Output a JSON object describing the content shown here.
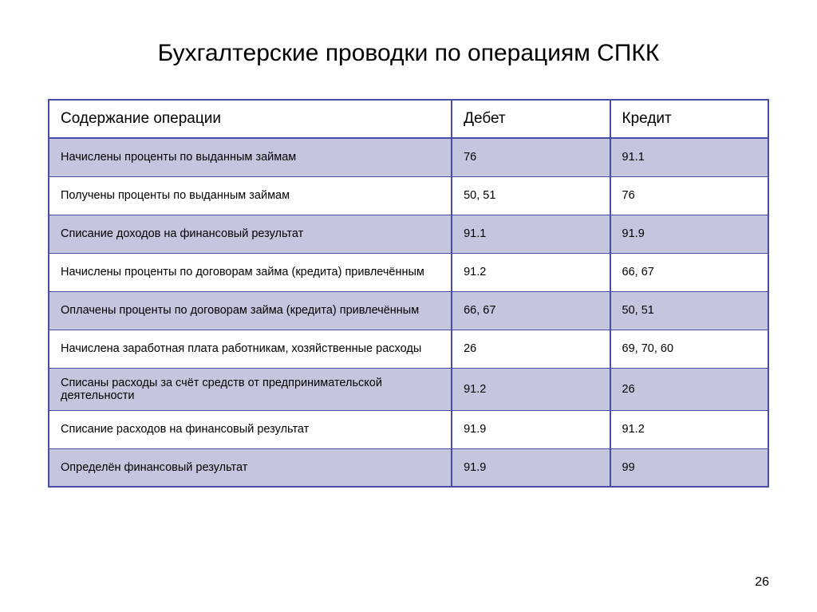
{
  "title": "Бухгалтерские проводки по операциям СПКК",
  "page_number": "26",
  "table": {
    "border_color": "#4a4da5",
    "row_bg_even": "#c4c6de",
    "row_bg_odd": "#ffffff",
    "title_fontsize": 30,
    "header_fontsize": 19,
    "body_fontsize": 14.5,
    "columns": [
      {
        "key": "operation",
        "label": "Содержание операции",
        "width_pct": 56
      },
      {
        "key": "debit",
        "label": "Дебет",
        "width_pct": 22
      },
      {
        "key": "credit",
        "label": "Кредит",
        "width_pct": 22
      }
    ],
    "rows": [
      {
        "operation": "Начислены проценты по выданным займам",
        "debit": "76",
        "credit": "91.1"
      },
      {
        "operation": "Получены проценты по выданным займам",
        "debit": "50, 51",
        "credit": "76"
      },
      {
        "operation": "Списание доходов на финансовый результат",
        "debit": "91.1",
        "credit": "91.9"
      },
      {
        "operation": "Начислены проценты по договорам займа (кредита) привлечённым",
        "debit": "91.2",
        "credit": "66, 67"
      },
      {
        "operation": "Оплачены проценты  по договорам займа (кредита) привлечённым",
        "debit": "66, 67",
        "credit": "50, 51"
      },
      {
        "operation": "Начислена заработная плата работникам, хозяйственные расходы",
        "debit": "26",
        "credit": "69, 70, 60"
      },
      {
        "operation": "Списаны расходы за счёт средств от предпринимательской деятельности",
        "debit": "91.2",
        "credit": "26"
      },
      {
        "operation": "Списание расходов на финансовый результат",
        "debit": "91.9",
        "credit": "91.2"
      },
      {
        "operation": "Определён финансовый результат",
        "debit": "91.9",
        "credit": "99"
      }
    ]
  }
}
